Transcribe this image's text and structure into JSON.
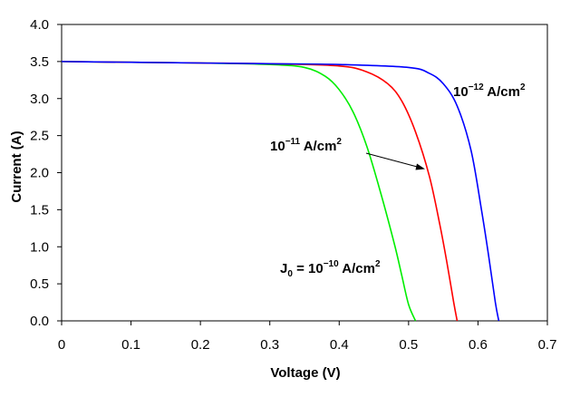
{
  "chart_data": {
    "type": "line",
    "xlabel": "Voltage (V)",
    "ylabel": "Current (A)",
    "xlim": [
      0,
      0.7
    ],
    "ylim": [
      0,
      4.0
    ],
    "xticks": [
      "0",
      "0.1",
      "0.2",
      "0.3",
      "0.4",
      "0.5",
      "0.6",
      "0.7"
    ],
    "yticks": [
      "0.0",
      "0.5",
      "1.0",
      "1.5",
      "2.0",
      "2.5",
      "3.0",
      "3.5",
      "4.0"
    ],
    "grid": false,
    "legend": "none",
    "series": [
      {
        "color": "#00ee00",
        "x": [
          0,
          0.1,
          0.2,
          0.3,
          0.35,
          0.38,
          0.4,
          0.42,
          0.44,
          0.46,
          0.48,
          0.49,
          0.5,
          0.51
        ],
        "y": [
          3.5,
          3.49,
          3.48,
          3.46,
          3.42,
          3.3,
          3.12,
          2.82,
          2.35,
          1.72,
          1.02,
          0.62,
          0.22,
          0.0
        ]
      },
      {
        "color": "#ff0000",
        "x": [
          0,
          0.1,
          0.2,
          0.3,
          0.4,
          0.44,
          0.47,
          0.49,
          0.51,
          0.53,
          0.545,
          0.555,
          0.565,
          0.57
        ],
        "y": [
          3.5,
          3.49,
          3.48,
          3.47,
          3.44,
          3.36,
          3.2,
          2.97,
          2.55,
          1.95,
          1.3,
          0.8,
          0.25,
          0.0
        ]
      },
      {
        "color": "#0000ff",
        "x": [
          0,
          0.1,
          0.2,
          0.3,
          0.4,
          0.5,
          0.53,
          0.55,
          0.57,
          0.59,
          0.605,
          0.615,
          0.625,
          0.63
        ],
        "y": [
          3.5,
          3.49,
          3.48,
          3.47,
          3.46,
          3.42,
          3.34,
          3.2,
          2.9,
          2.3,
          1.5,
          0.9,
          0.25,
          0.0
        ]
      }
    ],
    "annotations": [
      {
        "base": "10",
        "exp": "−12",
        "unit": " A/cm",
        "unit_exp": "2",
        "prefix": ""
      },
      {
        "base": "10",
        "exp": "−11",
        "unit": " A/cm",
        "unit_exp": "2",
        "prefix": ""
      },
      {
        "base": "10",
        "exp": "−10",
        "unit": " A/cm",
        "unit_exp": "2",
        "prefix": "J",
        "prefix_sub": "0",
        "eq": " = "
      }
    ]
  }
}
